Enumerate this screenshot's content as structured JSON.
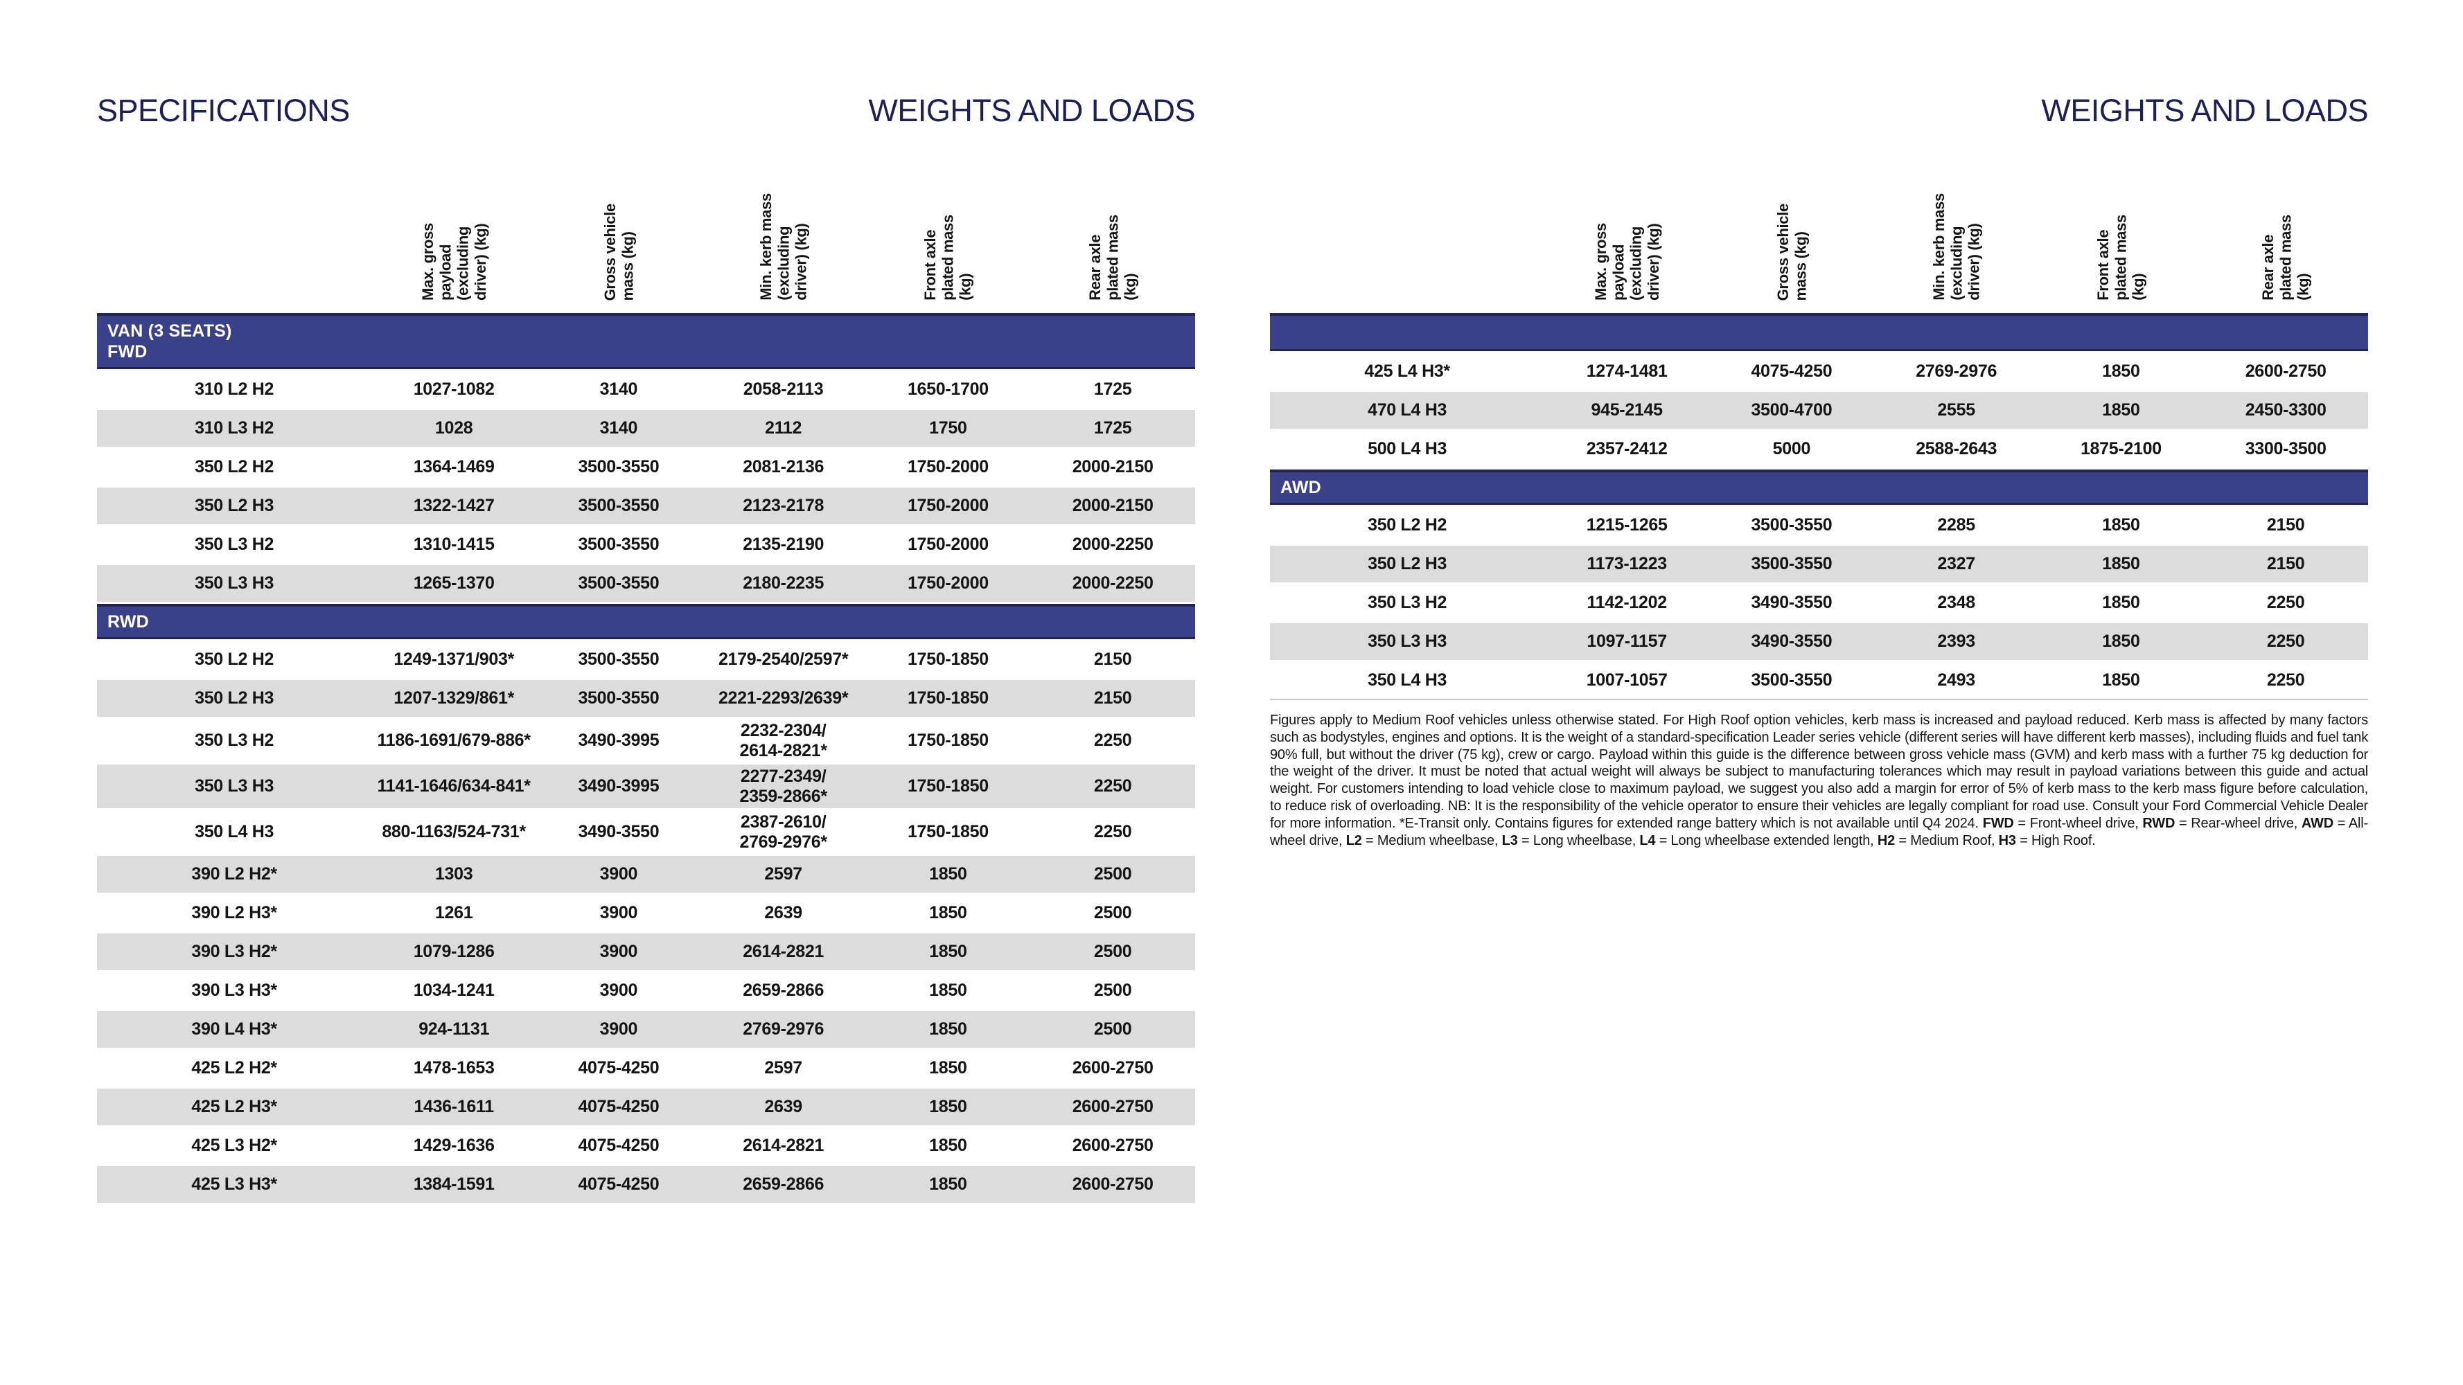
{
  "columns": [
    "Max. gross\npayload\n(excluding\ndriver) (kg)",
    "Gross vehicle\nmass (kg)",
    "Min. kerb mass\n(excluding\ndriver) (kg)",
    "Front axle\nplated mass\n(kg)",
    "Rear axle\nplated mass\n(kg)"
  ],
  "left_page": {
    "heading": "SPECIFICATIONS",
    "subheading": "WEIGHTS AND LOADS",
    "sections": [
      {
        "header": "VAN (3 SEATS)\nFWD",
        "rows": [
          {
            "model": "310 L2 H2",
            "values": [
              "1027-1082",
              "3140",
              "2058-2113",
              "1650-1700",
              "1725"
            ]
          },
          {
            "model": "310 L3 H2",
            "values": [
              "1028",
              "3140",
              "2112",
              "1750",
              "1725"
            ]
          },
          {
            "model": "350 L2 H2",
            "values": [
              "1364-1469",
              "3500-3550",
              "2081-2136",
              "1750-2000",
              "2000-2150"
            ]
          },
          {
            "model": "350 L2 H3",
            "values": [
              "1322-1427",
              "3500-3550",
              "2123-2178",
              "1750-2000",
              "2000-2150"
            ]
          },
          {
            "model": "350 L3 H2",
            "values": [
              "1310-1415",
              "3500-3550",
              "2135-2190",
              "1750-2000",
              "2000-2250"
            ]
          },
          {
            "model": "350 L3 H3",
            "values": [
              "1265-1370",
              "3500-3550",
              "2180-2235",
              "1750-2000",
              "2000-2250"
            ]
          }
        ]
      },
      {
        "header": "RWD",
        "rows": [
          {
            "model": "350 L2 H2",
            "values": [
              "1249-1371/903*",
              "3500-3550",
              "2179-2540/2597*",
              "1750-1850",
              "2150"
            ]
          },
          {
            "model": "350 L2 H3",
            "values": [
              "1207-1329/861*",
              "3500-3550",
              "2221-2293/2639*",
              "1750-1850",
              "2150"
            ]
          },
          {
            "model": "350 L3 H2",
            "values": [
              "1186-1691/679-886*",
              "3490-3995",
              "2232-2304/\n2614-2821*",
              "1750-1850",
              "2250"
            ]
          },
          {
            "model": "350 L3 H3",
            "values": [
              "1141-1646/634-841*",
              "3490-3995",
              "2277-2349/\n2359-2866*",
              "1750-1850",
              "2250"
            ]
          },
          {
            "model": "350 L4 H3",
            "values": [
              "880-1163/524-731*",
              "3490-3550",
              "2387-2610/\n2769-2976*",
              "1750-1850",
              "2250"
            ]
          },
          {
            "model": "390 L2 H2*",
            "values": [
              "1303",
              "3900",
              "2597",
              "1850",
              "2500"
            ]
          },
          {
            "model": "390 L2 H3*",
            "values": [
              "1261",
              "3900",
              "2639",
              "1850",
              "2500"
            ]
          },
          {
            "model": "390 L3 H2*",
            "values": [
              "1079-1286",
              "3900",
              "2614-2821",
              "1850",
              "2500"
            ]
          },
          {
            "model": "390 L3 H3*",
            "values": [
              "1034-1241",
              "3900",
              "2659-2866",
              "1850",
              "2500"
            ]
          },
          {
            "model": "390 L4 H3*",
            "values": [
              "924-1131",
              "3900",
              "2769-2976",
              "1850",
              "2500"
            ]
          },
          {
            "model": "425 L2 H2*",
            "values": [
              "1478-1653",
              "4075-4250",
              "2597",
              "1850",
              "2600-2750"
            ]
          },
          {
            "model": "425 L2 H3*",
            "values": [
              "1436-1611",
              "4075-4250",
              "2639",
              "1850",
              "2600-2750"
            ]
          },
          {
            "model": "425 L3 H2*",
            "values": [
              "1429-1636",
              "4075-4250",
              "2614-2821",
              "1850",
              "2600-2750"
            ]
          },
          {
            "model": "425 L3 H3*",
            "values": [
              "1384-1591",
              "4075-4250",
              "2659-2866",
              "1850",
              "2600-2750"
            ]
          }
        ]
      }
    ]
  },
  "right_page": {
    "subheading": "WEIGHTS AND LOADS",
    "sections": [
      {
        "header": "",
        "rows": [
          {
            "model": "425 L4 H3*",
            "values": [
              "1274-1481",
              "4075-4250",
              "2769-2976",
              "1850",
              "2600-2750"
            ]
          },
          {
            "model": "470 L4 H3",
            "values": [
              "945-2145",
              "3500-4700",
              "2555",
              "1850",
              "2450-3300"
            ]
          },
          {
            "model": "500 L4 H3",
            "values": [
              "2357-2412",
              "5000",
              "2588-2643",
              "1875-2100",
              "3300-3500"
            ]
          }
        ]
      },
      {
        "header": "AWD",
        "rows": [
          {
            "model": "350 L2 H2",
            "values": [
              "1215-1265",
              "3500-3550",
              "2285",
              "1850",
              "2150"
            ]
          },
          {
            "model": "350 L2 H3",
            "values": [
              "1173-1223",
              "3500-3550",
              "2327",
              "1850",
              "2150"
            ]
          },
          {
            "model": "350 L3 H2",
            "values": [
              "1142-1202",
              "3490-3550",
              "2348",
              "1850",
              "2250"
            ]
          },
          {
            "model": "350 L3 H3",
            "values": [
              "1097-1157",
              "3490-3550",
              "2393",
              "1850",
              "2250"
            ]
          },
          {
            "model": "350 L4 H3",
            "values": [
              "1007-1057",
              "3500-3550",
              "2493",
              "1850",
              "2250"
            ]
          }
        ]
      }
    ],
    "footnote_segments": [
      {
        "t": "Figures apply to Medium Roof vehicles unless otherwise stated. For High Roof option vehicles, kerb mass is increased and payload reduced. Kerb mass is affected by many factors such as bodystyles, engines and options. It is the weight of a standard-specification Leader series vehicle (different series will have different kerb masses), including fluids and fuel tank 90% full, but without the driver (75 kg), crew or cargo. Payload within this guide is the difference between gross vehicle mass (GVM) and kerb mass with a further 75 kg deduction for the weight of the driver. It must be noted that actual weight will always be subject to manufacturing tolerances which may result in payload variations between this guide and actual weight. For customers intending to load vehicle close to maximum payload, we suggest you also add a margin for error of 5% of kerb mass to the kerb mass figure before calculation, to reduce risk of overloading. NB: It is the responsibility of the vehicle operator to ensure their vehicles are legally compliant for road use. Consult your Ford Commercial Vehicle Dealer for more information. *E-Transit only. Contains figures for extended range battery which is not available until Q4 2024. ",
        "b": false
      },
      {
        "t": "FWD",
        "b": true
      },
      {
        "t": " = Front-wheel drive, ",
        "b": false
      },
      {
        "t": "RWD",
        "b": true
      },
      {
        "t": " = Rear-wheel drive, ",
        "b": false
      },
      {
        "t": "AWD",
        "b": true
      },
      {
        "t": " = All-wheel drive, ",
        "b": false
      },
      {
        "t": "L2",
        "b": true
      },
      {
        "t": " = Medium wheelbase, ",
        "b": false
      },
      {
        "t": "L3",
        "b": true
      },
      {
        "t": " = Long wheelbase, ",
        "b": false
      },
      {
        "t": "L4",
        "b": true
      },
      {
        "t": " = Long wheelbase extended length, ",
        "b": false
      },
      {
        "t": "H2",
        "b": true
      },
      {
        "t": " = Medium Roof, ",
        "b": false
      },
      {
        "t": "H3",
        "b": true
      },
      {
        "t": " = High Roof.",
        "b": false
      }
    ]
  },
  "colors": {
    "band": "#3A4189",
    "band_border": "#20244F",
    "row_alt": "#DCDCDC",
    "title": "#1B2156",
    "text": "#151515"
  }
}
